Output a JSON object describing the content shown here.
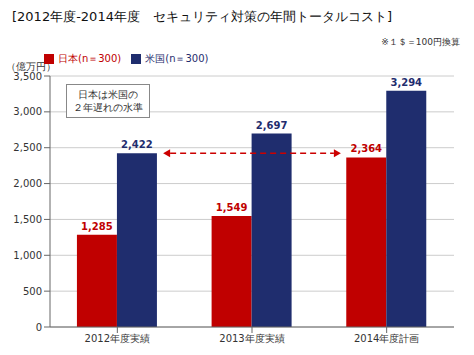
{
  "chart_data": {
    "type": "bar",
    "title": "[2012年度-2014年度　セキュリティ対策の年間トータルコスト]",
    "y_label": "（億万円）",
    "note": "※１＄＝100円換算",
    "annotation": "日本は米国の\n２年遅れの水準",
    "categories": [
      "2012年度実績",
      "2013年度実績",
      "2014年度計画"
    ],
    "series": [
      {
        "name": "日本(n＝300)",
        "color": "#c00000",
        "values": [
          1285,
          1549,
          2364
        ],
        "value_labels": [
          "1,285",
          "1,549",
          "2,364"
        ]
      },
      {
        "name": "米国(n＝300)",
        "color": "#1f2d6e",
        "values": [
          2422,
          2697,
          3294
        ],
        "value_labels": [
          "2,422",
          "2,697",
          "3,294"
        ]
      }
    ],
    "ylim": [
      0,
      3500
    ],
    "yticks": [
      0,
      500,
      {
        "value": 1000,
        "label": "1,000"
      },
      {
        "value": 1500,
        "label": "1,500"
      },
      {
        "value": 2000,
        "label": "2,000"
      },
      {
        "value": 2500,
        "label": "2,500"
      },
      {
        "value": 3000,
        "label": "3,000"
      },
      {
        "value": 3500,
        "label": "3,500"
      }
    ],
    "grid": true,
    "legend": "upper left",
    "data_labels": true,
    "arrow": {
      "y": 2422,
      "from": "2012年度実績",
      "to": "2014年度計画",
      "color": "#cc0000"
    }
  }
}
